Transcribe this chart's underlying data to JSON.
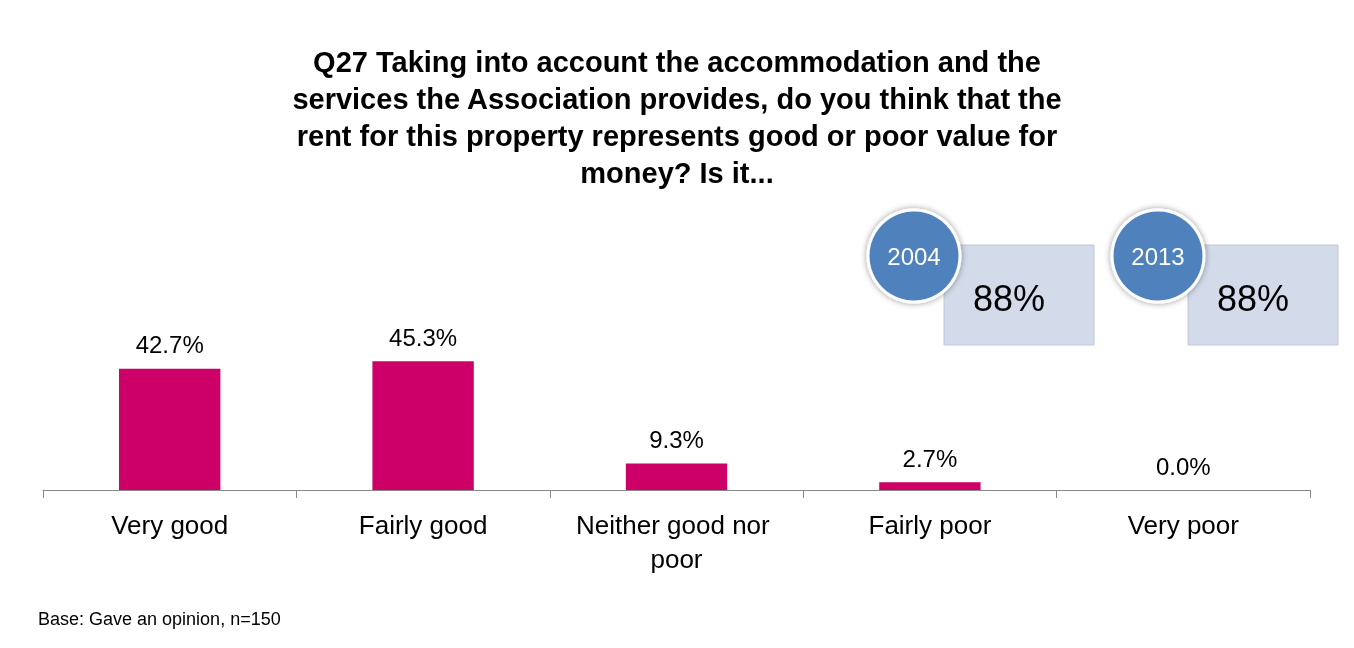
{
  "chart_data": {
    "type": "bar",
    "title": "Q27 Taking into account the accommodation and the\nservices the Association provides, do you think that the\nrent for this property represents good or poor value for\nmoney? Is it...",
    "categories": [
      "Very good",
      "Fairly good",
      "Neither good nor poor",
      "Fairly poor",
      "Very poor"
    ],
    "values": [
      42.7,
      45.3,
      9.3,
      2.7,
      0.0
    ],
    "value_labels": [
      "42.7%",
      "45.3%",
      "9.3%",
      "2.7%",
      "0.0%"
    ],
    "color": "#cc0066",
    "annotations": [
      "2004",
      "88%",
      "2013",
      "88%",
      "Base: Gave an opinion, n=150"
    ]
  }
}
